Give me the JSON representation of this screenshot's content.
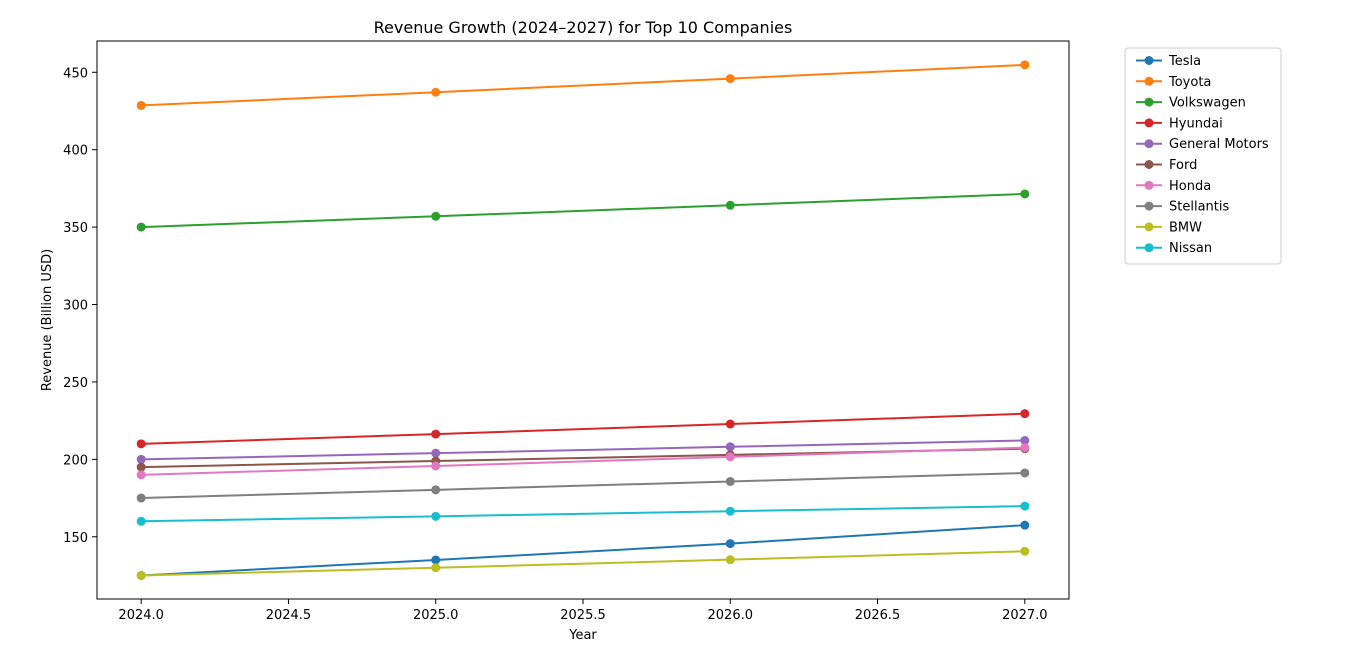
{
  "chart_data": {
    "type": "line",
    "title": "Revenue Growth (2024–2027) for Top 10 Companies",
    "xlabel": "Year",
    "ylabel": "Revenue (Billion USD)",
    "x": [
      2024,
      2025,
      2026,
      2027
    ],
    "xlim": [
      2023.85,
      2027.15
    ],
    "ylim": [
      109.8,
      470.2
    ],
    "xticks": [
      2024.0,
      2024.5,
      2025.0,
      2025.5,
      2026.0,
      2026.5,
      2027.0
    ],
    "xtick_labels": [
      "2024.0",
      "2024.5",
      "2025.0",
      "2025.5",
      "2026.0",
      "2026.5",
      "2027.0"
    ],
    "yticks": [
      150,
      200,
      250,
      300,
      350,
      400,
      450
    ],
    "ytick_labels": [
      "150",
      "200",
      "250",
      "300",
      "350",
      "400",
      "450"
    ],
    "grid": false,
    "legend_position": "outside-top-right",
    "marker": "circle",
    "series": [
      {
        "name": "Tesla",
        "color": "#1f77b4",
        "values": [
          125.0,
          135.0,
          145.6,
          157.5
        ]
      },
      {
        "name": "Toyota",
        "color": "#ff7f0e",
        "values": [
          428.6,
          437.1,
          445.9,
          454.8
        ]
      },
      {
        "name": "Volkswagen",
        "color": "#2ca02c",
        "values": [
          350.0,
          357.0,
          364.1,
          371.4
        ]
      },
      {
        "name": "Hyundai",
        "color": "#d62728",
        "values": [
          210.0,
          216.3,
          222.8,
          229.5
        ]
      },
      {
        "name": "General Motors",
        "color": "#9467bd",
        "values": [
          200.0,
          204.0,
          208.1,
          212.2
        ]
      },
      {
        "name": "Ford",
        "color": "#8c564b",
        "values": [
          195.0,
          198.9,
          202.9,
          206.9
        ]
      },
      {
        "name": "Honda",
        "color": "#e377c2",
        "values": [
          190.0,
          195.7,
          201.6,
          207.6
        ]
      },
      {
        "name": "Stellantis",
        "color": "#7f7f7f",
        "values": [
          175.0,
          180.3,
          185.7,
          191.2
        ]
      },
      {
        "name": "BMW",
        "color": "#bcbd22",
        "values": [
          125.0,
          130.0,
          135.2,
          140.6
        ]
      },
      {
        "name": "Nissan",
        "color": "#17becf",
        "values": [
          160.0,
          163.2,
          166.5,
          169.8
        ]
      }
    ]
  }
}
